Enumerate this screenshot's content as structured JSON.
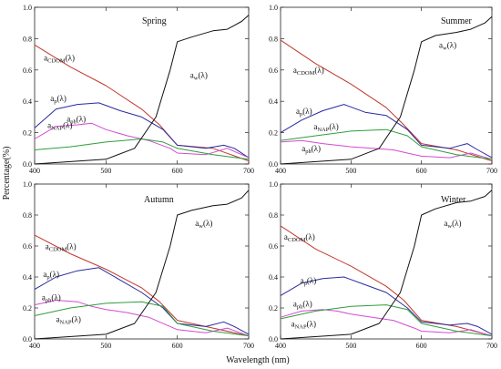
{
  "figure": {
    "xlabel": "Wavelength (nm)",
    "ylabel": "Percentage(%)",
    "colors": {
      "CDOM": "#c0392b",
      "p": "#2a2a9e",
      "ph": "#d24bd2",
      "NAP": "#2e9e3a",
      "w": "#111111"
    }
  },
  "chart_data": [
    {
      "type": "line",
      "title": "Spring",
      "xlim": [
        400,
        700
      ],
      "ylim": [
        0,
        1.0
      ],
      "xticks": [
        400,
        500,
        600,
        700
      ],
      "yticks": [
        0.0,
        0.2,
        0.4,
        0.6,
        0.8,
        1.0
      ],
      "series": [
        {
          "key": "CDOM",
          "name": "a_CDOM(λ)",
          "x": [
            400,
            450,
            500,
            550,
            575,
            600,
            650,
            700
          ],
          "y": [
            0.76,
            0.62,
            0.5,
            0.35,
            0.25,
            0.12,
            0.1,
            0.02
          ]
        },
        {
          "key": "p",
          "name": "a_p(λ)",
          "x": [
            400,
            430,
            460,
            490,
            520,
            550,
            580,
            600,
            640,
            665,
            680,
            700
          ],
          "y": [
            0.23,
            0.35,
            0.38,
            0.39,
            0.34,
            0.3,
            0.22,
            0.12,
            0.1,
            0.12,
            0.1,
            0.04
          ]
        },
        {
          "key": "ph",
          "name": "a_ph(λ)",
          "x": [
            400,
            430,
            460,
            480,
            500,
            530,
            560,
            590,
            600,
            640,
            670,
            700
          ],
          "y": [
            0.16,
            0.24,
            0.25,
            0.26,
            0.22,
            0.18,
            0.15,
            0.1,
            0.07,
            0.06,
            0.1,
            0.04
          ]
        },
        {
          "key": "NAP",
          "name": "a_NAP(λ)",
          "x": [
            400,
            450,
            500,
            550,
            580,
            600,
            650,
            700
          ],
          "y": [
            0.09,
            0.11,
            0.14,
            0.16,
            0.14,
            0.1,
            0.06,
            0.03
          ]
        },
        {
          "key": "w",
          "name": "a_w(λ)",
          "x": [
            400,
            500,
            540,
            570,
            590,
            600,
            620,
            650,
            670,
            690,
            700
          ],
          "y": [
            0.0,
            0.03,
            0.1,
            0.3,
            0.6,
            0.78,
            0.81,
            0.85,
            0.86,
            0.91,
            0.95
          ]
        }
      ],
      "labels": [
        {
          "key": "CDOM",
          "base": "a",
          "sub": "CDOM",
          "suffix": "(λ)",
          "x": 413,
          "y": 0.66
        },
        {
          "key": "p",
          "base": "a",
          "sub": "p",
          "suffix": "(λ)",
          "x": 422,
          "y": 0.4
        },
        {
          "key": "ph",
          "base": "a",
          "sub": "ph",
          "suffix": "(λ)",
          "x": 445,
          "y": 0.27
        },
        {
          "key": "NAP",
          "base": "a",
          "sub": "NAP",
          "suffix": "(λ)",
          "x": 418,
          "y": 0.23
        },
        {
          "key": "w",
          "base": "a",
          "sub": "w",
          "suffix": "(λ)",
          "x": 618,
          "y": 0.55
        }
      ]
    },
    {
      "type": "line",
      "title": "Summer",
      "xlim": [
        400,
        700
      ],
      "ylim": [
        0,
        1.0
      ],
      "xticks": [
        400,
        500,
        600,
        700
      ],
      "yticks": [
        0.0,
        0.2,
        0.4,
        0.6,
        0.8,
        1.0
      ],
      "series": [
        {
          "key": "CDOM",
          "name": "a_CDOM(λ)",
          "x": [
            400,
            450,
            500,
            550,
            575,
            600,
            650,
            700
          ],
          "y": [
            0.79,
            0.64,
            0.51,
            0.36,
            0.25,
            0.13,
            0.09,
            0.02
          ]
        },
        {
          "key": "p",
          "name": "a_p(λ)",
          "x": [
            400,
            430,
            460,
            490,
            520,
            550,
            580,
            600,
            640,
            665,
            680,
            700
          ],
          "y": [
            0.2,
            0.28,
            0.34,
            0.38,
            0.33,
            0.31,
            0.22,
            0.12,
            0.1,
            0.13,
            0.09,
            0.04
          ]
        },
        {
          "key": "ph",
          "name": "a_ph(λ)",
          "x": [
            400,
            430,
            460,
            480,
            500,
            530,
            560,
            590,
            600,
            640,
            670,
            700
          ],
          "y": [
            0.14,
            0.15,
            0.13,
            0.12,
            0.11,
            0.1,
            0.09,
            0.06,
            0.05,
            0.04,
            0.07,
            0.03
          ]
        },
        {
          "key": "NAP",
          "name": "a_NAP(λ)",
          "x": [
            400,
            450,
            500,
            550,
            580,
            600,
            650,
            700
          ],
          "y": [
            0.15,
            0.18,
            0.21,
            0.22,
            0.18,
            0.11,
            0.06,
            0.03
          ]
        },
        {
          "key": "w",
          "name": "a_w(λ)",
          "x": [
            400,
            500,
            540,
            570,
            590,
            600,
            620,
            650,
            670,
            690,
            700
          ],
          "y": [
            0.0,
            0.03,
            0.1,
            0.3,
            0.6,
            0.78,
            0.82,
            0.84,
            0.86,
            0.9,
            0.94
          ]
        }
      ],
      "labels": [
        {
          "key": "CDOM",
          "base": "a",
          "sub": "CDOM",
          "suffix": "(λ)",
          "x": 418,
          "y": 0.58
        },
        {
          "key": "p",
          "base": "a",
          "sub": "p",
          "suffix": "(λ)",
          "x": 422,
          "y": 0.32
        },
        {
          "key": "NAP",
          "base": "a",
          "sub": "NAP",
          "suffix": "(λ)",
          "x": 447,
          "y": 0.22
        },
        {
          "key": "ph",
          "base": "a",
          "sub": "ph",
          "suffix": "(λ)",
          "x": 430,
          "y": 0.08
        },
        {
          "key": "w",
          "base": "a",
          "sub": "w",
          "suffix": "(λ)",
          "x": 625,
          "y": 0.74
        }
      ]
    },
    {
      "type": "line",
      "title": "Autumn",
      "xlim": [
        400,
        700
      ],
      "ylim": [
        0,
        1.0
      ],
      "xticks": [
        400,
        500,
        600,
        700
      ],
      "yticks": [
        0.0,
        0.2,
        0.4,
        0.6,
        0.8,
        1.0
      ],
      "series": [
        {
          "key": "CDOM",
          "name": "a_CDOM(λ)",
          "x": [
            400,
            450,
            500,
            550,
            575,
            600,
            650,
            700
          ],
          "y": [
            0.67,
            0.55,
            0.45,
            0.33,
            0.24,
            0.12,
            0.07,
            0.02
          ]
        },
        {
          "key": "p",
          "name": "a_p(λ)",
          "x": [
            400,
            430,
            460,
            490,
            520,
            550,
            580,
            600,
            640,
            665,
            680,
            700
          ],
          "y": [
            0.32,
            0.4,
            0.44,
            0.46,
            0.38,
            0.3,
            0.2,
            0.1,
            0.08,
            0.11,
            0.08,
            0.03
          ]
        },
        {
          "key": "ph",
          "name": "a_ph(λ)",
          "x": [
            400,
            430,
            460,
            480,
            500,
            530,
            560,
            590,
            600,
            640,
            670,
            700
          ],
          "y": [
            0.22,
            0.25,
            0.24,
            0.21,
            0.19,
            0.17,
            0.14,
            0.08,
            0.06,
            0.04,
            0.07,
            0.02
          ]
        },
        {
          "key": "NAP",
          "name": "a_NAP(λ)",
          "x": [
            400,
            450,
            500,
            550,
            580,
            600,
            650,
            700
          ],
          "y": [
            0.15,
            0.2,
            0.23,
            0.24,
            0.21,
            0.1,
            0.05,
            0.02
          ]
        },
        {
          "key": "w",
          "name": "a_w(λ)",
          "x": [
            400,
            500,
            540,
            570,
            590,
            600,
            620,
            650,
            670,
            690,
            700
          ],
          "y": [
            0.0,
            0.03,
            0.1,
            0.3,
            0.6,
            0.8,
            0.83,
            0.86,
            0.87,
            0.91,
            0.96
          ]
        }
      ],
      "labels": [
        {
          "key": "CDOM",
          "base": "a",
          "sub": "CDOM",
          "suffix": "(λ)",
          "x": 415,
          "y": 0.58
        },
        {
          "key": "p",
          "base": "a",
          "sub": "p",
          "suffix": "(λ)",
          "x": 412,
          "y": 0.4
        },
        {
          "key": "ph",
          "base": "a",
          "sub": "ph",
          "suffix": "(λ)",
          "x": 410,
          "y": 0.25
        },
        {
          "key": "NAP",
          "base": "a",
          "sub": "NAP",
          "suffix": "(λ)",
          "x": 430,
          "y": 0.11
        },
        {
          "key": "w",
          "base": "a",
          "sub": "w",
          "suffix": "(λ)",
          "x": 625,
          "y": 0.73
        }
      ]
    },
    {
      "type": "line",
      "title": "Winter",
      "xlim": [
        400,
        700
      ],
      "ylim": [
        0,
        1.0
      ],
      "xticks": [
        400,
        500,
        600,
        700
      ],
      "yticks": [
        0.0,
        0.2,
        0.4,
        0.6,
        0.8,
        1.0
      ],
      "series": [
        {
          "key": "CDOM",
          "name": "a_CDOM(λ)",
          "x": [
            400,
            450,
            500,
            550,
            575,
            600,
            650,
            700
          ],
          "y": [
            0.73,
            0.58,
            0.47,
            0.34,
            0.25,
            0.12,
            0.08,
            0.02
          ]
        },
        {
          "key": "p",
          "name": "a_p(λ)",
          "x": [
            400,
            430,
            460,
            490,
            520,
            550,
            580,
            600,
            640,
            665,
            680,
            700
          ],
          "y": [
            0.28,
            0.36,
            0.39,
            0.4,
            0.35,
            0.3,
            0.2,
            0.11,
            0.09,
            0.1,
            0.08,
            0.03
          ]
        },
        {
          "key": "ph",
          "name": "a_ph(λ)",
          "x": [
            400,
            430,
            460,
            480,
            500,
            530,
            560,
            590,
            600,
            640,
            670,
            700
          ],
          "y": [
            0.14,
            0.18,
            0.19,
            0.18,
            0.16,
            0.14,
            0.12,
            0.07,
            0.05,
            0.04,
            0.06,
            0.02
          ]
        },
        {
          "key": "NAP",
          "name": "a_NAP(λ)",
          "x": [
            400,
            450,
            500,
            550,
            580,
            600,
            650,
            700
          ],
          "y": [
            0.13,
            0.18,
            0.21,
            0.22,
            0.19,
            0.1,
            0.05,
            0.02
          ]
        },
        {
          "key": "w",
          "name": "a_w(λ)",
          "x": [
            400,
            500,
            540,
            570,
            590,
            600,
            620,
            650,
            670,
            690,
            700
          ],
          "y": [
            0.0,
            0.03,
            0.1,
            0.3,
            0.6,
            0.8,
            0.84,
            0.88,
            0.89,
            0.92,
            0.96
          ]
        }
      ],
      "labels": [
        {
          "key": "CDOM",
          "base": "a",
          "sub": "CDOM",
          "suffix": "(λ)",
          "x": 405,
          "y": 0.64
        },
        {
          "key": "p",
          "base": "a",
          "sub": "p",
          "suffix": "(λ)",
          "x": 428,
          "y": 0.36
        },
        {
          "key": "ph",
          "base": "a",
          "sub": "ph",
          "suffix": "(λ)",
          "x": 418,
          "y": 0.21
        },
        {
          "key": "NAP",
          "base": "a",
          "sub": "NAP",
          "suffix": "(λ)",
          "x": 415,
          "y": 0.08
        },
        {
          "key": "w",
          "base": "a",
          "sub": "w",
          "suffix": "(λ)",
          "x": 632,
          "y": 0.73
        }
      ]
    }
  ]
}
